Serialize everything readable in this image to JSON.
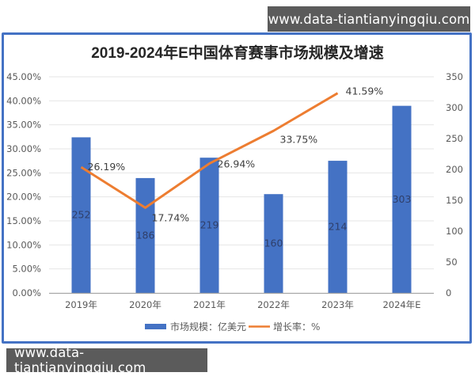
{
  "watermarks": {
    "top": "www.data-tiantianyingqiu.com",
    "bottom": "www.data-tiantianyingqiu.com"
  },
  "colors": {
    "bar": "#4472c4",
    "line": "#ed7d31",
    "frame": "#4472c4",
    "grid": "#e6e6e6"
  },
  "chart_data": {
    "type": "bar",
    "title": "2019-2024年E中国体育赛事市场规模及增速",
    "categories": [
      "2019年",
      "2020年",
      "2021年",
      "2022年",
      "2023年",
      "2024年E"
    ],
    "series": [
      {
        "name": "市场规模：亿美元",
        "type": "bar",
        "axis": "right",
        "values": [
          252,
          186,
          219,
          160,
          214,
          303
        ],
        "labels": [
          "252",
          "186",
          "219",
          "160",
          "214",
          "303"
        ]
      },
      {
        "name": "增长率：%",
        "type": "line",
        "axis": "left",
        "values": [
          26.19,
          17.74,
          26.94,
          33.75,
          41.59,
          null
        ],
        "labels": [
          "26.19%",
          "17.74%",
          "26.94%",
          "33.75%",
          "41.59%",
          ""
        ]
      }
    ],
    "y_left": {
      "ticks": [
        "0.00%",
        "5.00%",
        "10.00%",
        "15.00%",
        "20.00%",
        "25.00%",
        "30.00%",
        "35.00%",
        "40.00%",
        "45.00%"
      ],
      "min": 0,
      "max": 45
    },
    "y_right": {
      "ticks": [
        "0",
        "50",
        "100",
        "150",
        "200",
        "250",
        "300",
        "350"
      ],
      "min": 0,
      "max": 350
    },
    "xlabel": "",
    "ylabel": "",
    "grid": true,
    "legend_position": "bottom"
  }
}
